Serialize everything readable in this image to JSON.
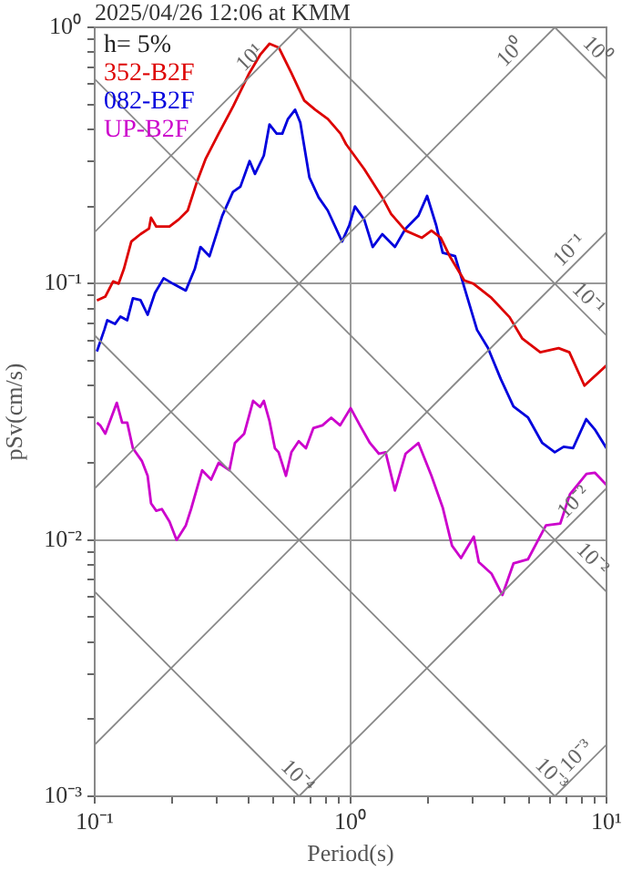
{
  "chart_data": {
    "type": "line",
    "title": "2025/04/26 12:06 at KMM",
    "xlabel": "Period(s)",
    "ylabel": "pSv(cm/s)",
    "log": "xy",
    "grid": true,
    "legend": "top left",
    "xlim": [
      0.1,
      10
    ],
    "ylim": [
      0.001,
      1
    ],
    "xticks": [
      {
        "value": 0.1,
        "label": "10⁻¹"
      },
      {
        "value": 0.2,
        "label": null
      },
      {
        "value": 0.3,
        "label": null
      },
      {
        "value": 0.4,
        "label": null
      },
      {
        "value": 0.5,
        "label": null
      },
      {
        "value": 0.6,
        "label": null
      },
      {
        "value": 0.7,
        "label": null
      },
      {
        "value": 0.8,
        "label": null
      },
      {
        "value": 0.9,
        "label": null
      },
      {
        "value": 1,
        "label": "10⁰"
      },
      {
        "value": 2,
        "label": null
      },
      {
        "value": 3,
        "label": null
      },
      {
        "value": 4,
        "label": null
      },
      {
        "value": 5,
        "label": null
      },
      {
        "value": 6,
        "label": null
      },
      {
        "value": 7,
        "label": null
      },
      {
        "value": 8,
        "label": null
      },
      {
        "value": 9,
        "label": null
      },
      {
        "value": 10,
        "label": "10¹"
      }
    ],
    "yticks": [
      {
        "value": 0.001,
        "label": "10⁻³"
      },
      {
        "value": 0.002,
        "label": null
      },
      {
        "value": 0.003,
        "label": null
      },
      {
        "value": 0.004,
        "label": null
      },
      {
        "value": 0.005,
        "label": null
      },
      {
        "value": 0.006,
        "label": null
      },
      {
        "value": 0.007,
        "label": null
      },
      {
        "value": 0.008,
        "label": null
      },
      {
        "value": 0.009,
        "label": null
      },
      {
        "value": 0.01,
        "label": "10⁻²"
      },
      {
        "value": 0.02,
        "label": null
      },
      {
        "value": 0.03,
        "label": null
      },
      {
        "value": 0.04,
        "label": null
      },
      {
        "value": 0.05,
        "label": null
      },
      {
        "value": 0.06,
        "label": null
      },
      {
        "value": 0.07,
        "label": null
      },
      {
        "value": 0.08,
        "label": null
      },
      {
        "value": 0.09,
        "label": null
      },
      {
        "value": 0.1,
        "label": "10⁻¹"
      },
      {
        "value": 0.2,
        "label": null
      },
      {
        "value": 0.3,
        "label": null
      },
      {
        "value": 0.4,
        "label": null
      },
      {
        "value": 0.5,
        "label": null
      },
      {
        "value": 0.6,
        "label": null
      },
      {
        "value": 0.7,
        "label": null
      },
      {
        "value": 0.8,
        "label": null
      },
      {
        "value": 0.9,
        "label": null
      },
      {
        "value": 1,
        "label": "10⁰"
      }
    ],
    "annotations": [
      "h= 5%",
      {
        "text": "10¹",
        "x": 0.44,
        "y": 0.7
      },
      {
        "text": "10⁰",
        "x": 4.6,
        "y": 0.73
      },
      {
        "text": "10⁰",
        "x": 8.4,
        "y": 0.75
      },
      {
        "text": "10⁻¹",
        "x": 7.8,
        "y": 0.124
      },
      {
        "text": "10⁻¹",
        "x": 7.8,
        "y": 0.0805
      },
      {
        "text": "10⁻²",
        "x": 8.1,
        "y": 0.0129
      },
      {
        "text": "10⁻²",
        "x": 8.1,
        "y": 0.00775
      },
      {
        "text": "10⁻⁴",
        "x": 0.57,
        "y": 0.0011
      },
      {
        "text": "10⁻³",
        "x": 5.6,
        "y": 0.00112
      },
      {
        "text": "10⁻³",
        "x": 8.3,
        "y": 0.00132
      }
    ],
    "series": [
      {
        "type": "line",
        "color": "#888888",
        "x": [
          0.1,
          0.6283
        ],
        "values": [
          0.159,
          1
        ]
      },
      {
        "type": "line",
        "color": "#888888",
        "x": [
          0.1,
          6.283
        ],
        "values": [
          0.0159,
          1
        ]
      },
      {
        "type": "line",
        "color": "#888888",
        "x": [
          0.1,
          10
        ],
        "values": [
          0.00159,
          0.159
        ]
      },
      {
        "type": "line",
        "color": "#888888",
        "x": [
          0.6283,
          10
        ],
        "values": [
          0.001,
          0.0159
        ]
      },
      {
        "type": "line",
        "color": "#888888",
        "x": [
          6.283,
          10
        ],
        "values": [
          0.001,
          0.00159
        ]
      },
      {
        "type": "line",
        "color": "#888888",
        "x": [
          6.283,
          10
        ],
        "values": [
          1,
          0.628
        ]
      },
      {
        "type": "line",
        "color": "#888888",
        "x": [
          0.6283,
          10
        ],
        "values": [
          1,
          0.0628
        ]
      },
      {
        "type": "line",
        "color": "#888888",
        "x": [
          0.1,
          10
        ],
        "values": [
          0.628,
          0.00628
        ]
      },
      {
        "type": "line",
        "color": "#888888",
        "x": [
          0.1,
          6.283
        ],
        "values": [
          0.0628,
          0.001
        ]
      },
      {
        "type": "line",
        "color": "#888888",
        "x": [
          0.1,
          0.6283
        ],
        "values": [
          0.00628,
          0.001
        ]
      },
      {
        "name": "352-B2F",
        "color": "#dd0000",
        "x": [
          0.102,
          0.11,
          0.118,
          0.124,
          0.13,
          0.139,
          0.151,
          0.163,
          0.166,
          0.174,
          0.196,
          0.213,
          0.231,
          0.25,
          0.271,
          0.305,
          0.348,
          0.402,
          0.443,
          0.482,
          0.524,
          0.587,
          0.659,
          0.727,
          0.815,
          0.913,
          0.96,
          1.13,
          1.33,
          1.44,
          1.64,
          1.9,
          2.07,
          2.25,
          2.44,
          2.78,
          3.02,
          3.55,
          4.18,
          4.69,
          5.51,
          6.5,
          7.16,
          8.2,
          10
        ],
        "values": [
          0.086,
          0.089,
          0.102,
          0.1,
          0.114,
          0.146,
          0.156,
          0.164,
          0.181,
          0.167,
          0.167,
          0.178,
          0.193,
          0.247,
          0.306,
          0.385,
          0.493,
          0.663,
          0.781,
          0.863,
          0.834,
          0.663,
          0.518,
          0.477,
          0.439,
          0.385,
          0.35,
          0.28,
          0.217,
          0.187,
          0.161,
          0.151,
          0.161,
          0.151,
          0.128,
          0.103,
          0.1,
          0.088,
          0.074,
          0.061,
          0.054,
          0.056,
          0.054,
          0.04,
          0.048
        ]
      },
      {
        "name": "082-B2F",
        "color": "#0000dd",
        "x": [
          0.102,
          0.109,
          0.112,
          0.12,
          0.126,
          0.134,
          0.141,
          0.151,
          0.161,
          0.172,
          0.186,
          0.202,
          0.227,
          0.246,
          0.259,
          0.281,
          0.315,
          0.347,
          0.371,
          0.403,
          0.423,
          0.458,
          0.482,
          0.514,
          0.541,
          0.569,
          0.607,
          0.636,
          0.69,
          0.75,
          0.814,
          0.926,
          0.988,
          1.04,
          1.13,
          1.22,
          1.33,
          1.49,
          1.64,
          1.84,
          1.99,
          2.16,
          2.29,
          2.56,
          2.78,
          3.12,
          3.44,
          3.86,
          4.33,
          4.93,
          5.61,
          6.28,
          6.8,
          7.4,
          8.33,
          9,
          10
        ],
        "values": [
          0.0544,
          0.066,
          0.072,
          0.0696,
          0.0744,
          0.072,
          0.0877,
          0.0862,
          0.0756,
          0.092,
          0.105,
          0.1,
          0.094,
          0.114,
          0.139,
          0.128,
          0.184,
          0.228,
          0.239,
          0.301,
          0.268,
          0.316,
          0.418,
          0.385,
          0.385,
          0.439,
          0.477,
          0.425,
          0.26,
          0.217,
          0.193,
          0.146,
          0.169,
          0.2,
          0.178,
          0.139,
          0.156,
          0.139,
          0.164,
          0.184,
          0.22,
          0.169,
          0.132,
          0.128,
          0.097,
          0.066,
          0.0562,
          0.0425,
          0.0332,
          0.0301,
          0.0239,
          0.022,
          0.0231,
          0.0228,
          0.0296,
          0.027,
          0.0228
        ]
      },
      {
        "name": "UP-B2F",
        "color": "#cc00cc",
        "x": [
          0.102,
          0.105,
          0.11,
          0.122,
          0.128,
          0.134,
          0.141,
          0.153,
          0.161,
          0.166,
          0.174,
          0.183,
          0.196,
          0.209,
          0.227,
          0.238,
          0.263,
          0.285,
          0.305,
          0.336,
          0.353,
          0.384,
          0.416,
          0.443,
          0.458,
          0.482,
          0.506,
          0.523,
          0.559,
          0.587,
          0.627,
          0.669,
          0.715,
          0.776,
          0.84,
          0.91,
          1.0,
          1.09,
          1.19,
          1.29,
          1.37,
          1.49,
          1.64,
          1.84,
          2.07,
          2.29,
          2.49,
          2.7,
          3.03,
          3.17,
          3.55,
          3.92,
          4.33,
          4.93,
          5.44,
          5.8,
          6.6,
          7.2,
          8.35,
          9,
          10
        ],
        "values": [
          0.0287,
          0.028,
          0.026,
          0.0343,
          0.0287,
          0.0287,
          0.0228,
          0.0203,
          0.0178,
          0.0139,
          0.013,
          0.0132,
          0.0118,
          0.01,
          0.0114,
          0.0132,
          0.0187,
          0.0172,
          0.02,
          0.0187,
          0.0239,
          0.026,
          0.0349,
          0.033,
          0.0349,
          0.0291,
          0.0228,
          0.022,
          0.0178,
          0.022,
          0.0243,
          0.0228,
          0.0273,
          0.028,
          0.03,
          0.028,
          0.0327,
          0.0279,
          0.0239,
          0.0217,
          0.022,
          0.0156,
          0.0217,
          0.0239,
          0.0178,
          0.0134,
          0.0095,
          0.0085,
          0.0103,
          0.0082,
          0.0074,
          0.0061,
          0.0081,
          0.0084,
          0.0101,
          0.0114,
          0.0116,
          0.0151,
          0.0181,
          0.0183,
          0.0164
        ]
      }
    ]
  }
}
